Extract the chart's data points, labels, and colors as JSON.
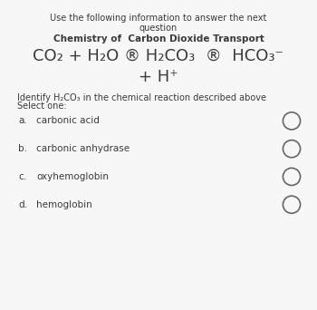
{
  "bg_color": "#f7f7f7",
  "header_line1": "Use the following information to answer the next",
  "header_line2": "question",
  "subtitle": "Chemistry of  Carbon Dioxide Transport",
  "reaction_line1": "CO₂ + H₂O ® H₂CO₃  ®  HCO₃⁻",
  "reaction_line2": "+ H⁺",
  "question_line1": "Identify H₂CO₃ in the chemical reaction described above",
  "question_line2": "Select one:",
  "options": [
    {
      "label": "a.",
      "text": "carbonic acid"
    },
    {
      "label": "b.",
      "text": "carbonic anhydrase"
    },
    {
      "label": "c.",
      "text": "oxyhemoglobin"
    },
    {
      "label": "d.",
      "text": "hemoglobin"
    }
  ],
  "text_color": "#3a3a3a",
  "circle_color": "#666666",
  "figw": 3.5,
  "figh": 3.42,
  "dpi": 100
}
